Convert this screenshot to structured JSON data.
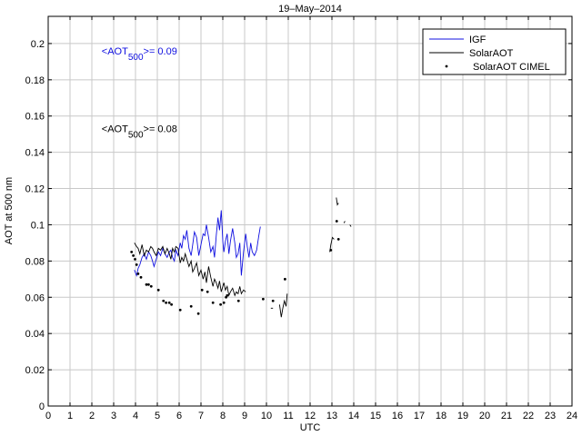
{
  "chart_data": {
    "type": "line",
    "title": "19–May–2014",
    "xlabel": "UTC",
    "ylabel": "AOT at 500 nm",
    "xlim": [
      0,
      24
    ],
    "ylim": [
      0,
      0.215
    ],
    "xticks": [
      0,
      1,
      2,
      3,
      4,
      5,
      6,
      7,
      8,
      9,
      10,
      11,
      12,
      13,
      14,
      15,
      16,
      17,
      18,
      19,
      20,
      21,
      22,
      23,
      24
    ],
    "yticks": [
      0,
      0.02,
      0.04,
      0.06,
      0.08,
      0.1,
      0.12,
      0.14,
      0.16,
      0.18,
      0.2
    ],
    "ytick_labels": [
      "0",
      "0.02",
      "0.04",
      "0.06",
      "0.08",
      "0.1",
      "0.12",
      "0.14",
      "0.16",
      "0.18",
      "0.2"
    ],
    "grid": true,
    "legend_position": "top-right",
    "colors": {
      "igf": "#1010e0",
      "solaraot": "#000000",
      "cimel": "#000000"
    },
    "annotations": [
      {
        "id": "igf-mean",
        "main": "<AOT",
        "sub": "500",
        "rest": ">= 0.09",
        "color": "#1010e0",
        "x": 2.45,
        "y": 0.194
      },
      {
        "id": "solar-mean",
        "main": "<AOT",
        "sub": "500",
        "rest": ">= 0.08",
        "color": "#000000",
        "x": 2.45,
        "y": 0.151
      }
    ],
    "series": [
      {
        "name": "IGF",
        "style": "line",
        "color": "#1010e0",
        "segments": [
          {
            "x": [
              3.95,
              4.05,
              4.12,
              4.2,
              4.3,
              4.4,
              4.5,
              4.6,
              4.7,
              4.78,
              4.85,
              4.95,
              5.05,
              5.15,
              5.25,
              5.35,
              5.45,
              5.55,
              5.62,
              5.7,
              5.78,
              5.85,
              5.95,
              6.05,
              6.12,
              6.2,
              6.28,
              6.35,
              6.45,
              6.55,
              6.62,
              6.7,
              6.8,
              6.9,
              7.0,
              7.1,
              7.18,
              7.25,
              7.35,
              7.45,
              7.55,
              7.62,
              7.7,
              7.78,
              7.85,
              7.93,
              8.0,
              8.05,
              8.12,
              8.2,
              8.28,
              8.35,
              8.45,
              8.55,
              8.62,
              8.7,
              8.78,
              8.85,
              8.95,
              9.05,
              9.12,
              9.2,
              9.28,
              9.35,
              9.45,
              9.55,
              9.65,
              9.72
            ],
            "y": [
              0.075,
              0.072,
              0.076,
              0.078,
              0.082,
              0.084,
              0.081,
              0.085,
              0.083,
              0.08,
              0.077,
              0.081,
              0.085,
              0.083,
              0.087,
              0.084,
              0.082,
              0.085,
              0.086,
              0.082,
              0.08,
              0.086,
              0.083,
              0.09,
              0.087,
              0.094,
              0.092,
              0.097,
              0.087,
              0.083,
              0.089,
              0.096,
              0.093,
              0.083,
              0.089,
              0.095,
              0.094,
              0.1,
              0.093,
              0.085,
              0.088,
              0.082,
              0.094,
              0.104,
              0.097,
              0.108,
              0.091,
              0.085,
              0.091,
              0.095,
              0.084,
              0.091,
              0.098,
              0.09,
              0.082,
              0.084,
              0.09,
              0.072,
              0.085,
              0.095,
              0.088,
              0.082,
              0.09,
              0.085,
              0.083,
              0.086,
              0.094,
              0.099
            ]
          }
        ]
      },
      {
        "name": "SolarAOT",
        "style": "line",
        "color": "#000000",
        "segments": [
          {
            "x": [
              3.95,
              4.05,
              4.12,
              4.2,
              4.3,
              4.4,
              4.5,
              4.6,
              4.7,
              4.78,
              4.85,
              4.95,
              5.05,
              5.15,
              5.25,
              5.35,
              5.45,
              5.55,
              5.62,
              5.7,
              5.78,
              5.85,
              5.95,
              6.05,
              6.12,
              6.2,
              6.28,
              6.35,
              6.45,
              6.55,
              6.62,
              6.7,
              6.8,
              6.9,
              7.0,
              7.1,
              7.18,
              7.25,
              7.35,
              7.45,
              7.55,
              7.62,
              7.7,
              7.78,
              7.85,
              7.93,
              8.0,
              8.05,
              8.12,
              8.2,
              8.28,
              8.35,
              8.45,
              8.55,
              8.62,
              8.7,
              8.78,
              8.85,
              8.95,
              9.05
            ],
            "y": [
              0.09,
              0.088,
              0.087,
              0.084,
              0.089,
              0.083,
              0.086,
              0.085,
              0.088,
              0.087,
              0.085,
              0.083,
              0.087,
              0.086,
              0.088,
              0.084,
              0.087,
              0.084,
              0.081,
              0.087,
              0.085,
              0.088,
              0.087,
              0.079,
              0.082,
              0.08,
              0.084,
              0.081,
              0.077,
              0.08,
              0.074,
              0.076,
              0.079,
              0.072,
              0.075,
              0.07,
              0.074,
              0.068,
              0.077,
              0.071,
              0.066,
              0.07,
              0.068,
              0.065,
              0.069,
              0.063,
              0.066,
              0.068,
              0.064,
              0.066,
              0.061,
              0.063,
              0.065,
              0.061,
              0.063,
              0.062,
              0.066,
              0.062,
              0.064,
              0.063
            ]
          },
          {
            "x": [
              10.6,
              10.68,
              10.75,
              10.82,
              10.9,
              10.95
            ],
            "y": [
              0.056,
              0.049,
              0.054,
              0.058,
              0.055,
              0.062
            ]
          },
          {
            "x": [
              12.9,
              12.95,
              13.02,
              13.1
            ],
            "y": [
              0.085,
              0.089,
              0.093,
              0.092
            ]
          },
          {
            "x": [
              13.2,
              13.25,
              13.3
            ],
            "y": [
              0.115,
              0.111,
              0.112
            ]
          },
          {
            "x": [
              13.55,
              13.6
            ],
            "y": [
              0.101,
              0.102
            ]
          },
          {
            "x": [
              13.82,
              13.88
            ],
            "y": [
              0.1,
              0.099
            ]
          },
          {
            "x": [
              10.2,
              10.3
            ],
            "y": [
              0.054,
              0.054
            ]
          }
        ]
      },
      {
        "name": "SolarAOT CIMEL",
        "style": "points",
        "color": "#000000",
        "x": [
          3.82,
          3.9,
          3.98,
          4.05,
          4.12,
          4.25,
          4.5,
          4.6,
          4.72,
          5.05,
          5.28,
          5.4,
          5.55,
          5.65,
          6.05,
          6.55,
          6.88,
          7.05,
          7.3,
          7.55,
          7.9,
          8.05,
          8.15,
          8.2,
          8.72,
          9.85,
          10.3,
          10.85,
          12.95,
          13.22,
          13.3
        ],
        "y": [
          0.085,
          0.083,
          0.081,
          0.078,
          0.073,
          0.071,
          0.067,
          0.067,
          0.066,
          0.064,
          0.058,
          0.057,
          0.057,
          0.056,
          0.053,
          0.055,
          0.051,
          0.064,
          0.063,
          0.057,
          0.056,
          0.057,
          0.06,
          0.061,
          0.058,
          0.059,
          0.058,
          0.07,
          0.086,
          0.102,
          0.092
        ]
      }
    ]
  }
}
